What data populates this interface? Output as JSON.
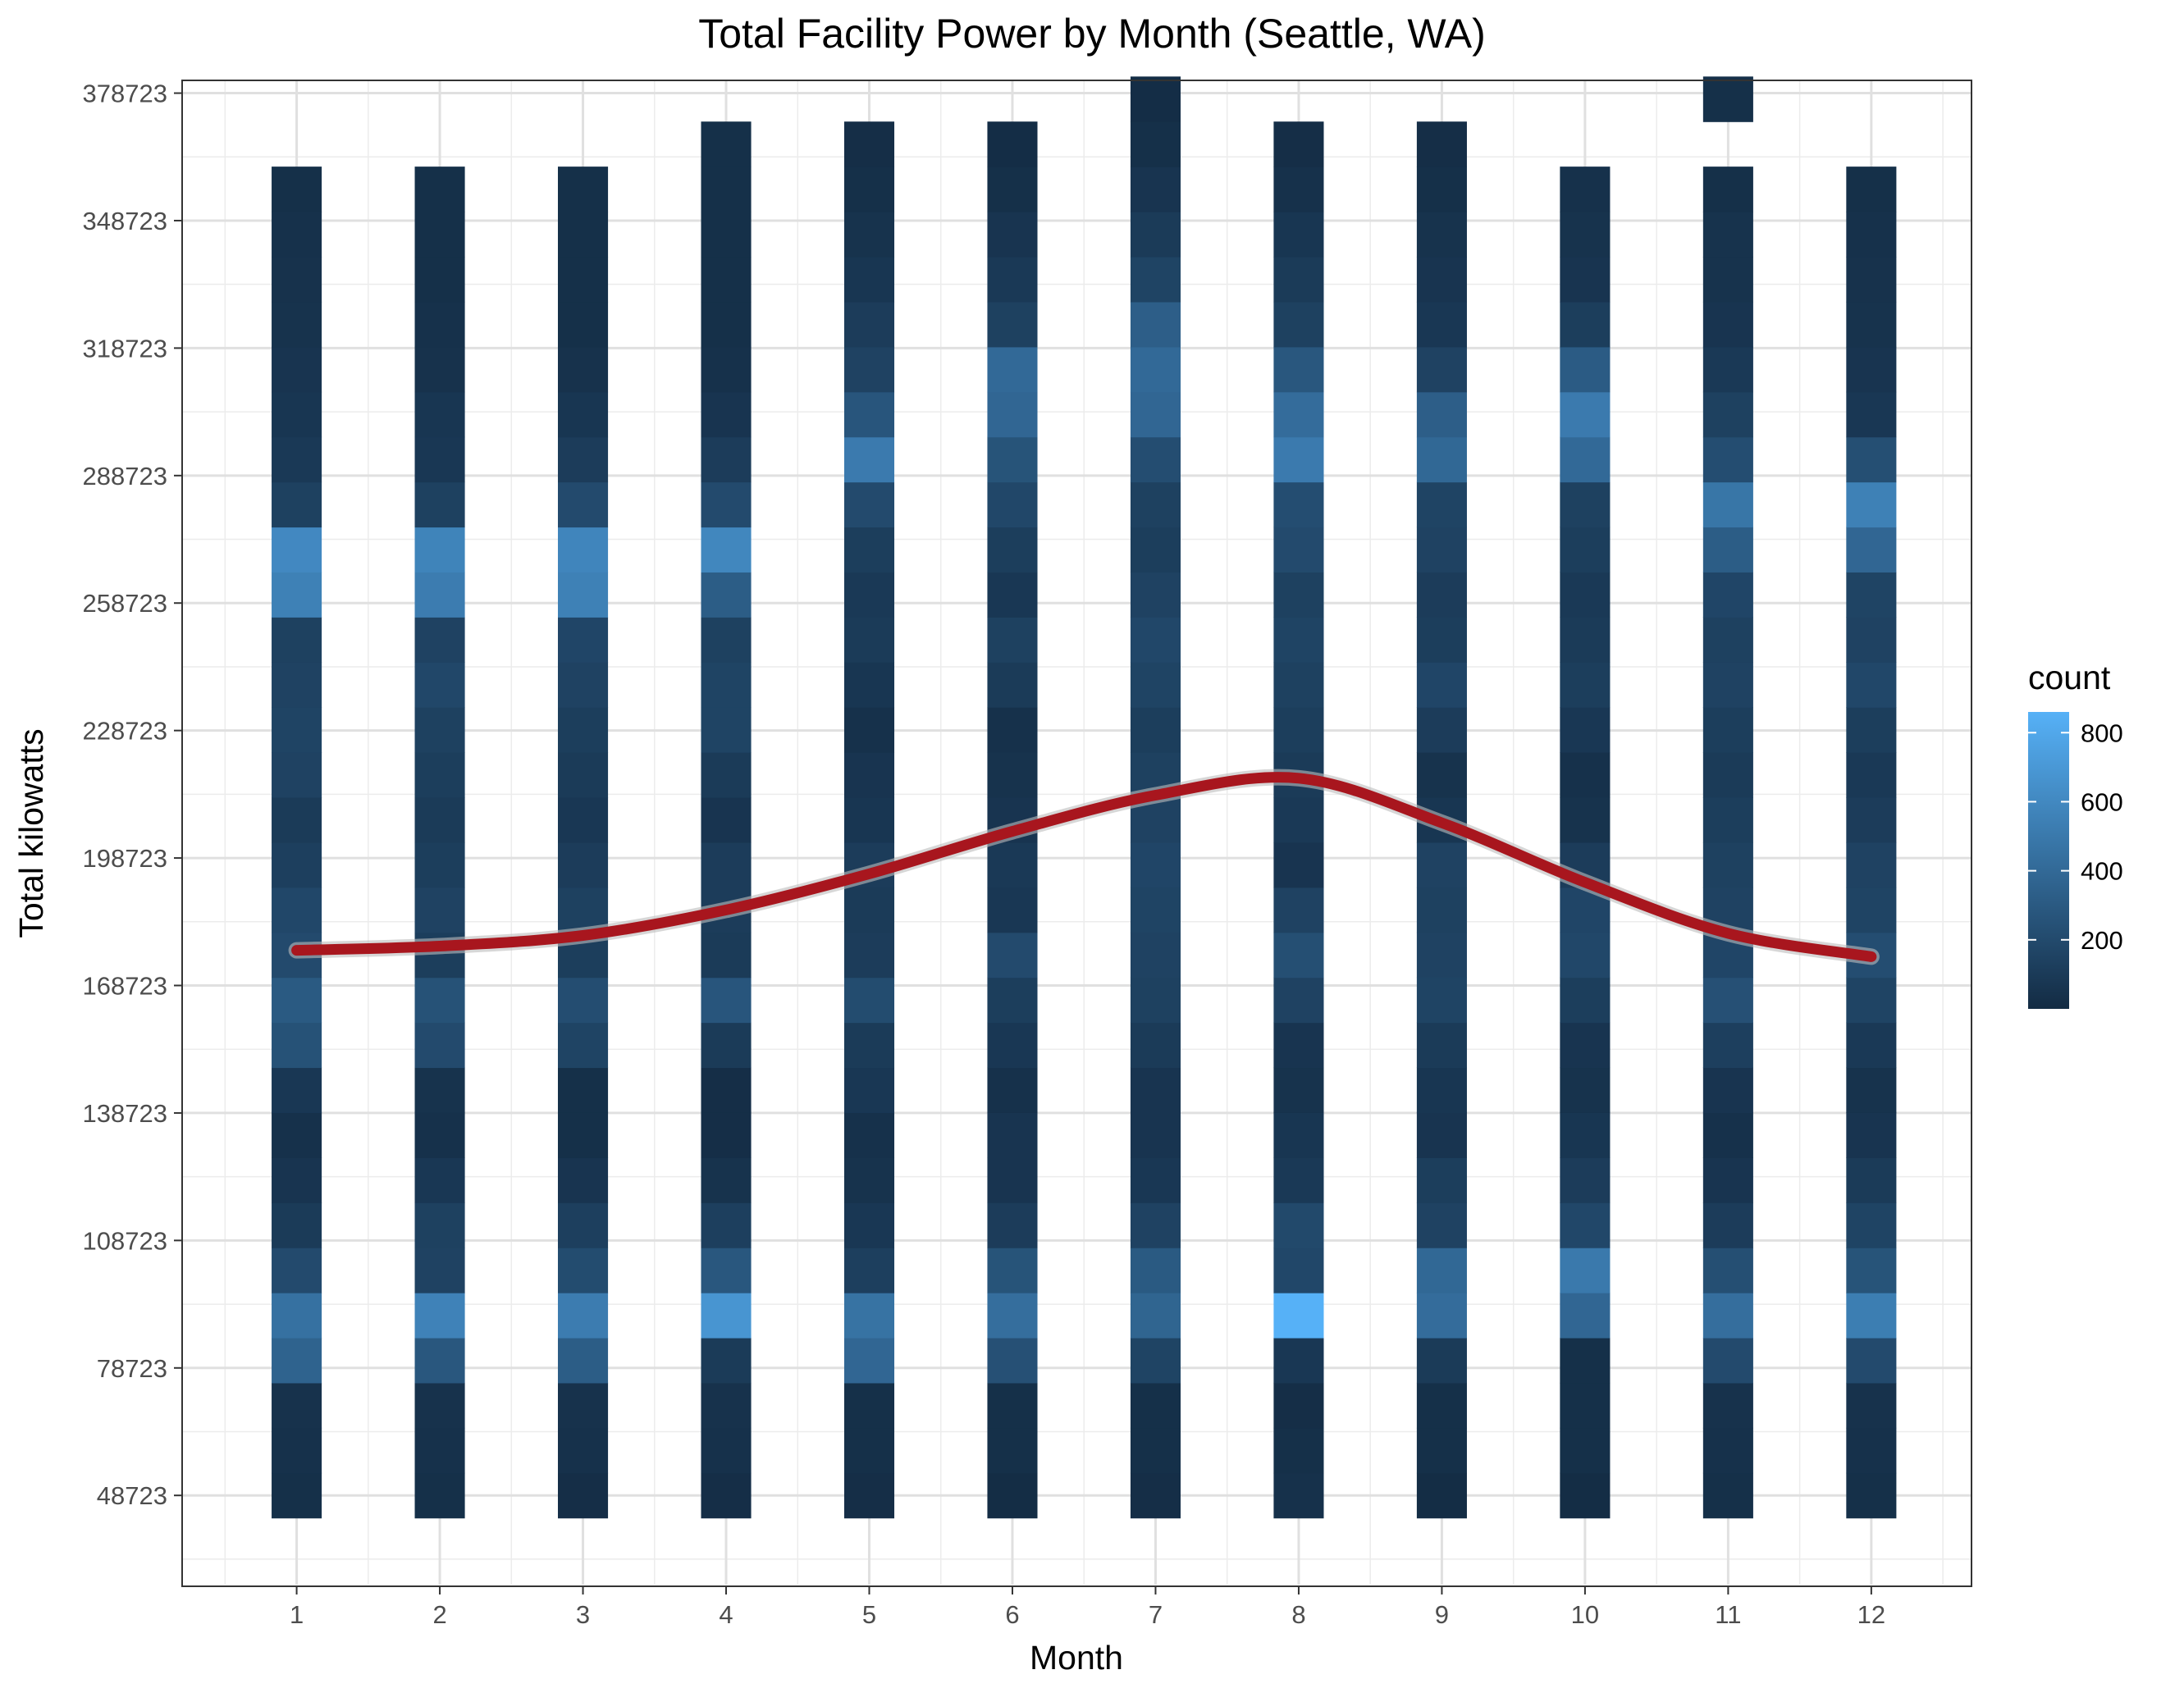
{
  "chart_data": {
    "type": "heatmap",
    "title": "Total Facility Power by Month (Seattle, WA)",
    "xlabel": "Month",
    "ylabel": "Total kilowatts",
    "x_ticks": [
      "1",
      "2",
      "3",
      "4",
      "5",
      "6",
      "7",
      "8",
      "9",
      "10",
      "11",
      "12"
    ],
    "y_ticks": [
      48723,
      78723,
      108723,
      138723,
      168723,
      198723,
      228723,
      258723,
      288723,
      318723,
      348723,
      378723
    ],
    "xlim": [
      0.2,
      12.7
    ],
    "ylim": [
      27723,
      381723
    ],
    "bin_height": 10600,
    "y_bins_start": 43429,
    "grid": true,
    "legend": {
      "title": "count",
      "position": "right",
      "ticks": [
        200,
        400,
        600,
        800
      ],
      "range": [
        0,
        860
      ],
      "color_low": "#132B43",
      "color_high": "#56B1F7"
    },
    "columns": [
      {
        "x": 1,
        "counts": [
          30,
          40,
          45,
          360,
          450,
          200,
          100,
          60,
          40,
          80,
          250,
          300,
          200,
          180,
          130,
          100,
          150,
          160,
          150,
          140,
          550,
          600,
          140,
          90,
          70,
          60,
          50,
          45,
          40,
          30
        ]
      },
      {
        "x": 2,
        "counts": [
          30,
          40,
          45,
          280,
          560,
          150,
          140,
          80,
          40,
          50,
          200,
          250,
          120,
          150,
          120,
          100,
          120,
          140,
          180,
          150,
          520,
          570,
          140,
          80,
          70,
          45,
          40,
          30,
          30,
          30
        ]
      },
      {
        "x": 3,
        "counts": [
          20,
          40,
          45,
          320,
          520,
          210,
          130,
          60,
          30,
          30,
          160,
          220,
          120,
          140,
          110,
          80,
          100,
          120,
          150,
          170,
          550,
          580,
          200,
          110,
          70,
          45,
          30,
          30,
          30,
          30
        ]
      },
      {
        "x": 4,
        "counts": [
          20,
          40,
          45,
          100,
          680,
          280,
          130,
          50,
          20,
          20,
          100,
          270,
          100,
          110,
          110,
          60,
          100,
          160,
          160,
          140,
          320,
          590,
          200,
          110,
          60,
          40,
          30,
          30,
          30,
          30,
          30
        ]
      },
      {
        "x": 5,
        "counts": [
          20,
          30,
          30,
          380,
          460,
          130,
          80,
          50,
          40,
          80,
          100,
          210,
          110,
          100,
          110,
          70,
          60,
          40,
          70,
          100,
          90,
          120,
          200,
          510,
          270,
          150,
          110,
          70,
          50,
          30,
          20
        ]
      },
      {
        "x": 6,
        "counts": [
          10,
          30,
          30,
          240,
          430,
          260,
          110,
          60,
          60,
          40,
          80,
          120,
          200,
          80,
          90,
          60,
          50,
          40,
          100,
          140,
          80,
          120,
          180,
          260,
          380,
          400,
          140,
          90,
          60,
          30,
          15
        ]
      },
      {
        "x": 7,
        "counts": [
          20,
          30,
          30,
          160,
          370,
          300,
          150,
          80,
          60,
          60,
          100,
          140,
          150,
          160,
          170,
          150,
          140,
          120,
          160,
          180,
          150,
          120,
          140,
          220,
          380,
          400,
          330,
          160,
          100,
          60,
          30,
          15
        ]
      },
      {
        "x": 8,
        "counts": [
          40,
          30,
          20,
          80,
          860,
          180,
          190,
          90,
          70,
          50,
          60,
          150,
          230,
          150,
          60,
          90,
          100,
          120,
          140,
          160,
          140,
          200,
          220,
          510,
          420,
          280,
          140,
          100,
          70,
          40,
          20
        ]
      },
      {
        "x": 9,
        "counts": [
          10,
          30,
          30,
          100,
          420,
          390,
          150,
          120,
          60,
          70,
          100,
          160,
          150,
          140,
          150,
          70,
          50,
          110,
          170,
          120,
          110,
          150,
          160,
          390,
          330,
          150,
          80,
          60,
          50,
          30,
          20
        ]
      },
      {
        "x": 10,
        "counts": [
          10,
          30,
          30,
          30,
          380,
          500,
          180,
          110,
          70,
          50,
          60,
          120,
          180,
          170,
          110,
          50,
          40,
          80,
          120,
          100,
          90,
          120,
          140,
          400,
          510,
          310,
          120,
          60,
          50,
          40
        ]
      },
      {
        "x": 11,
        "counts": [
          30,
          40,
          45,
          200,
          430,
          230,
          110,
          60,
          40,
          60,
          130,
          240,
          170,
          150,
          140,
          120,
          100,
          120,
          150,
          140,
          170,
          320,
          480,
          220,
          140,
          90,
          60,
          50,
          50,
          30,
          0,
          30
        ]
      },
      {
        "x": 12,
        "counts": [
          30,
          40,
          45,
          200,
          530,
          260,
          160,
          100,
          60,
          50,
          90,
          160,
          220,
          160,
          150,
          110,
          90,
          120,
          180,
          150,
          160,
          380,
          550,
          230,
          80,
          60,
          50,
          45,
          40,
          30
        ]
      }
    ],
    "smooth_line": {
      "x": [
        1,
        2,
        3,
        4,
        5,
        6,
        7,
        8,
        9,
        10,
        11,
        12
      ],
      "y": [
        177000,
        178000,
        180500,
        186500,
        195000,
        205000,
        213500,
        217500,
        207000,
        193000,
        181000,
        175500
      ],
      "color": "#A8161E"
    }
  }
}
